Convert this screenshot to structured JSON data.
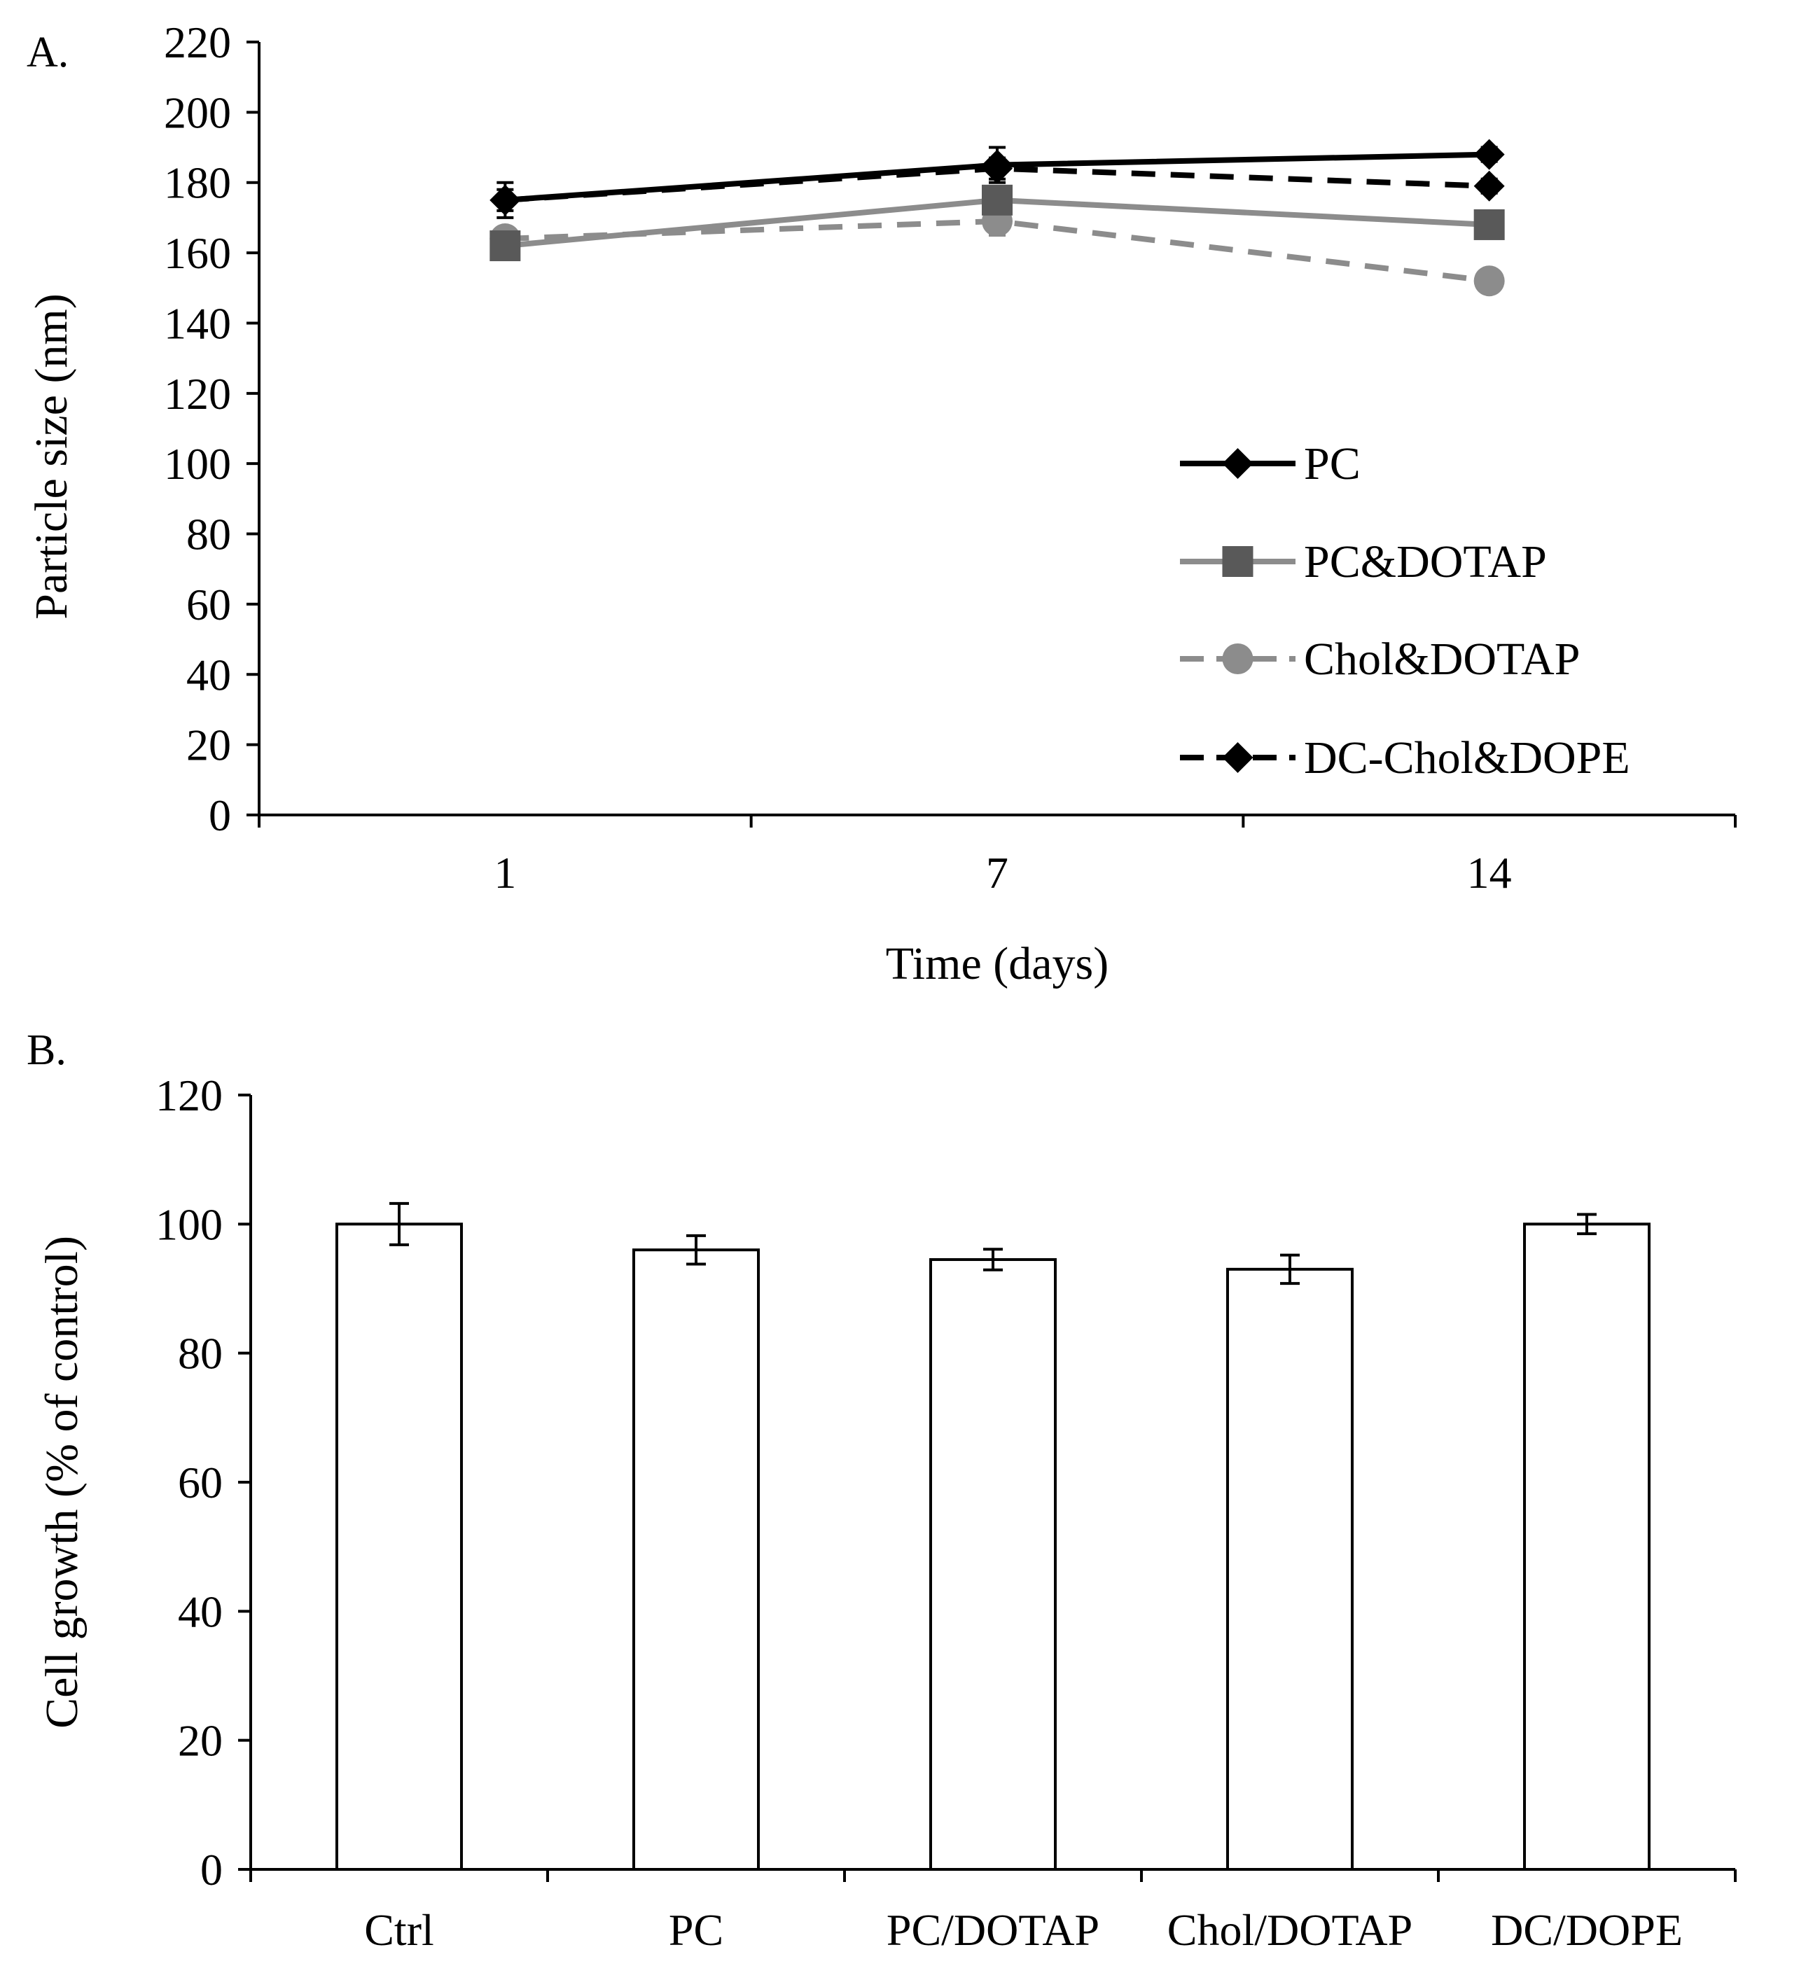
{
  "figure": {
    "panel_a_label": "A.",
    "panel_b_label": "B."
  },
  "chart_data": [
    {
      "type": "line",
      "xlabel": "Time (days)",
      "ylabel": "Particle size (nm)",
      "ylim": [
        0,
        220
      ],
      "yticks": [
        0,
        20,
        40,
        60,
        80,
        100,
        120,
        140,
        160,
        180,
        200,
        220
      ],
      "categories": [
        "1",
        "7",
        "14"
      ],
      "grid": false,
      "legend_position": "center-right",
      "series": [
        {
          "name": "PC",
          "values": [
            175,
            185,
            188
          ],
          "errors": [
            5,
            5,
            2
          ],
          "color": "#000000",
          "dash": "solid",
          "marker": "diamond"
        },
        {
          "name": "PC&DOTAP",
          "values": [
            162,
            175,
            168
          ],
          "errors": [
            3,
            3,
            2
          ],
          "color": "#8c8c8c",
          "marker_color": "#595959",
          "dash": "solid",
          "marker": "square"
        },
        {
          "name": "Chol&DOTAP",
          "values": [
            164,
            169,
            152
          ],
          "errors": [
            3,
            4,
            2
          ],
          "color": "#8c8c8c",
          "marker_color": "#8c8c8c",
          "dash": "dashed",
          "marker": "circle"
        },
        {
          "name": "DC-Chol&DOPE",
          "values": [
            175,
            184,
            179
          ],
          "errors": [
            3,
            3,
            2
          ],
          "color": "#000000",
          "dash": "dashed",
          "marker": "diamond"
        }
      ]
    },
    {
      "type": "bar",
      "xlabel": "",
      "ylabel": "Cell growth (% of control)",
      "ylim": [
        0,
        120
      ],
      "yticks": [
        0,
        20,
        40,
        60,
        80,
        100,
        120
      ],
      "grid": false,
      "categories": [
        "Ctrl",
        "PC",
        "PC/DOTAP",
        "Chol/DOTAP",
        "DC/DOPE"
      ],
      "values": [
        100,
        96,
        94.5,
        93,
        100
      ],
      "errors": [
        3.2,
        2.2,
        1.6,
        2.2,
        1.5
      ],
      "bar_fill": "#ffffff",
      "bar_stroke": "#000000"
    }
  ]
}
